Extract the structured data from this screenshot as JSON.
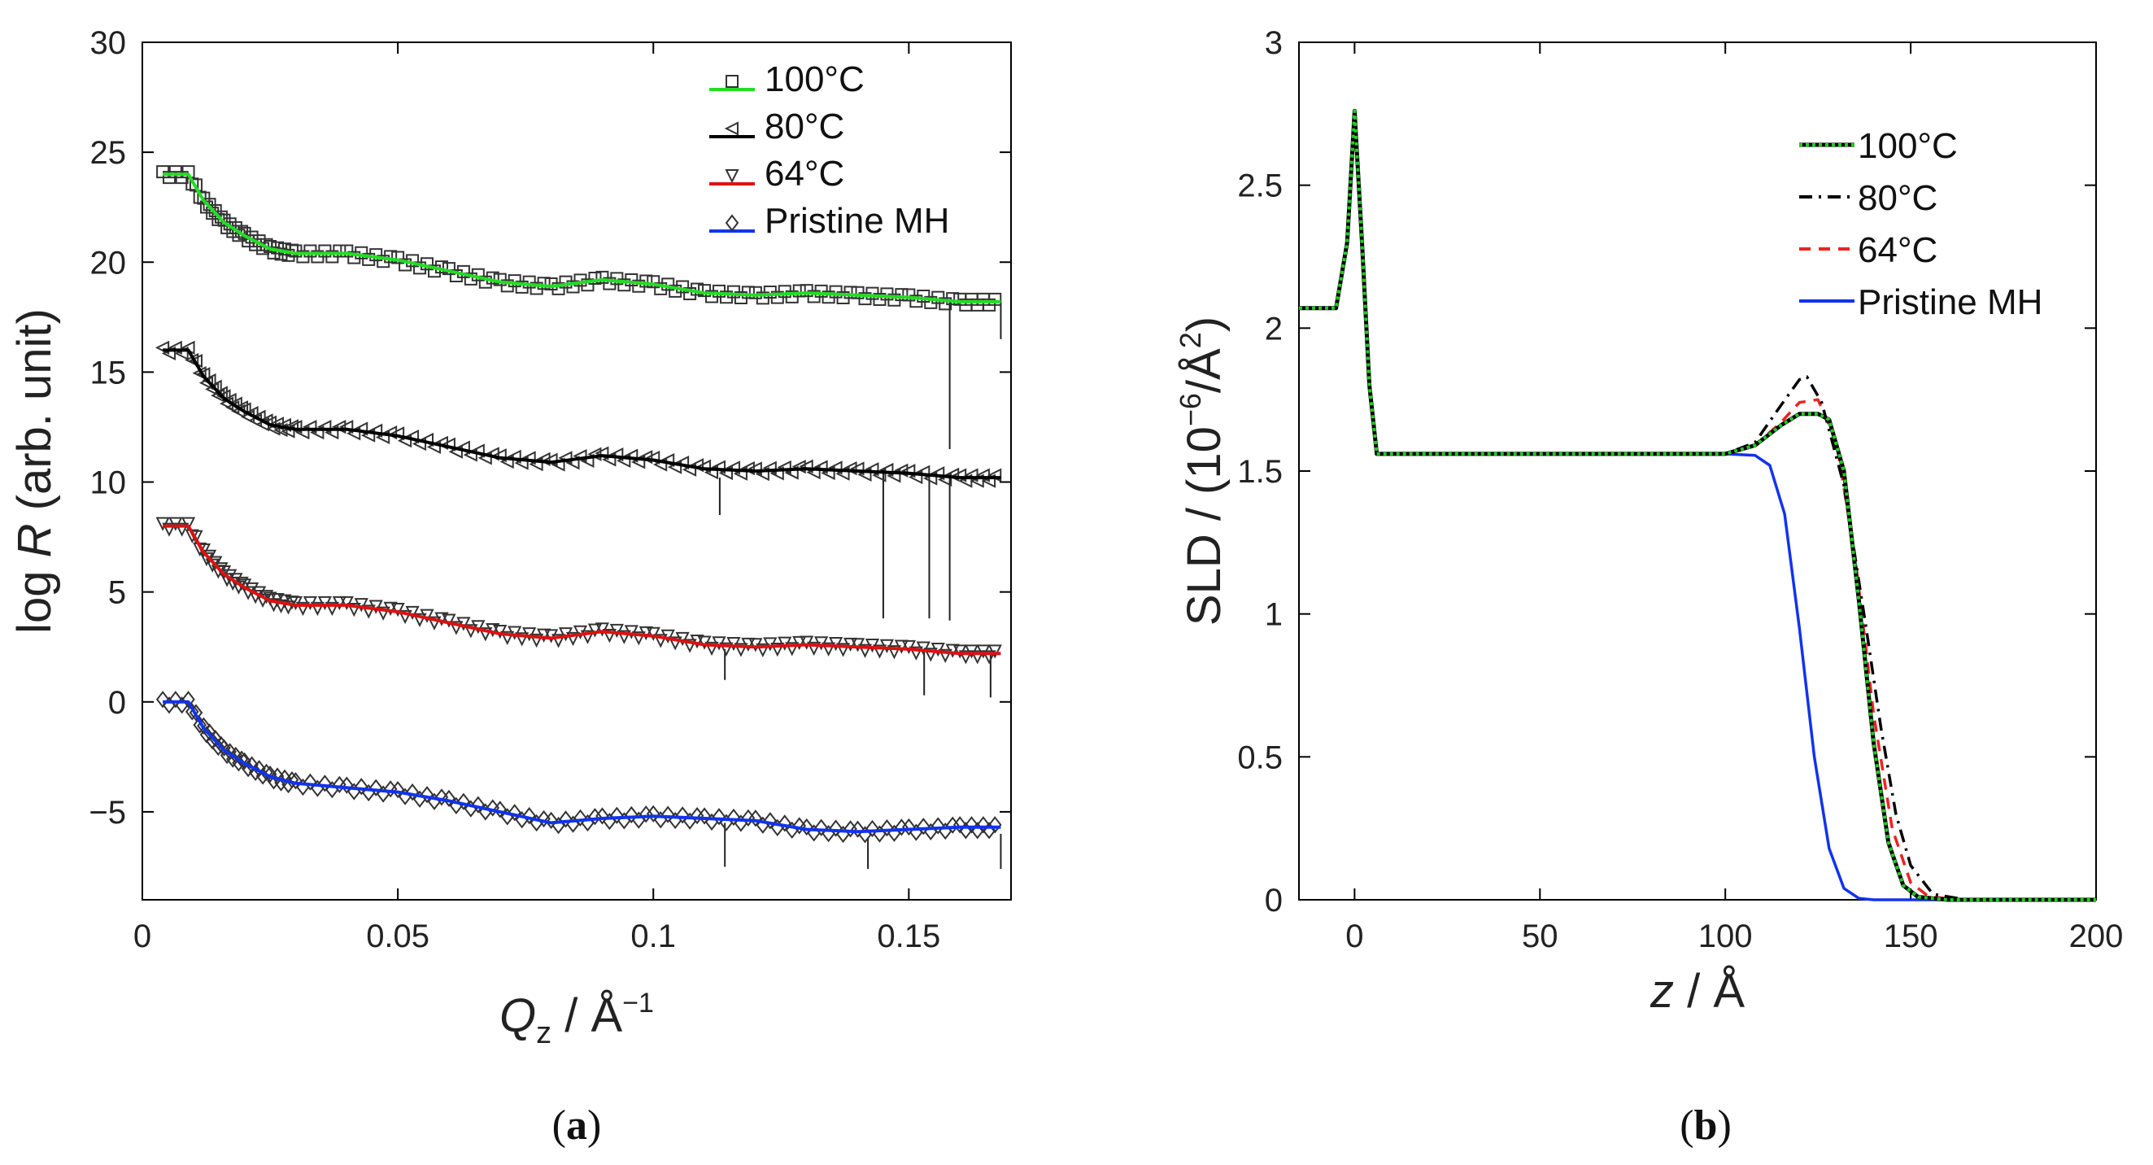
{
  "chart_data": [
    {
      "panel": "a",
      "type": "line",
      "caption_letter": "a",
      "xlabel": "Q",
      "xlabel_sub": "z",
      "xlabel_unit": " / Å",
      "xlabel_exp": "−1",
      "ylabel": "log ",
      "ylabel_italic": "R",
      "ylabel_unit": " (arb. unit)",
      "xlim": [
        0,
        0.17
      ],
      "ylim": [
        -9,
        30
      ],
      "xticks": [
        0,
        0.05,
        0.1,
        0.15
      ],
      "xtick_labels": [
        "0",
        "0.05",
        "0.1",
        "0.15"
      ],
      "yticks": [
        -5,
        0,
        5,
        10,
        15,
        20,
        25,
        30
      ],
      "ytick_labels": [
        "−5",
        "0",
        "5",
        "10",
        "15",
        "20",
        "25",
        "30"
      ],
      "series": [
        {
          "name": "100°C",
          "color": "#22dd22",
          "marker": "square",
          "offset": 24,
          "x": [
            0.004,
            0.009,
            0.012,
            0.016,
            0.02,
            0.025,
            0.03,
            0.04,
            0.05,
            0.06,
            0.07,
            0.08,
            0.09,
            0.1,
            0.11,
            0.12,
            0.13,
            0.14,
            0.15,
            0.16,
            0.168
          ],
          "y": [
            24.0,
            24.0,
            22.8,
            21.8,
            21.2,
            20.6,
            20.4,
            20.4,
            20.1,
            19.6,
            19.1,
            18.9,
            19.2,
            19.0,
            18.6,
            18.5,
            18.6,
            18.5,
            18.4,
            18.2,
            18.2
          ]
        },
        {
          "name": "80°C",
          "color": "#000000",
          "marker": "triangle-left",
          "offset": 16,
          "x": [
            0.004,
            0.009,
            0.012,
            0.016,
            0.02,
            0.025,
            0.03,
            0.04,
            0.05,
            0.06,
            0.07,
            0.08,
            0.09,
            0.1,
            0.11,
            0.12,
            0.13,
            0.14,
            0.15,
            0.16,
            0.168
          ],
          "y": [
            16.0,
            16.0,
            14.8,
            13.8,
            13.2,
            12.6,
            12.4,
            12.4,
            12.1,
            11.6,
            11.1,
            10.9,
            11.2,
            11.0,
            10.6,
            10.5,
            10.6,
            10.5,
            10.4,
            10.2,
            10.2
          ]
        },
        {
          "name": "64°C",
          "color": "#dd1111",
          "marker": "triangle-down",
          "offset": 8,
          "x": [
            0.004,
            0.009,
            0.012,
            0.016,
            0.02,
            0.025,
            0.03,
            0.04,
            0.05,
            0.06,
            0.07,
            0.08,
            0.09,
            0.1,
            0.11,
            0.12,
            0.13,
            0.14,
            0.15,
            0.16,
            0.168
          ],
          "y": [
            8.0,
            8.0,
            6.8,
            5.8,
            5.2,
            4.6,
            4.4,
            4.4,
            4.1,
            3.6,
            3.1,
            2.9,
            3.2,
            3.0,
            2.6,
            2.5,
            2.6,
            2.5,
            2.4,
            2.2,
            2.2
          ]
        },
        {
          "name": "Pristine MH",
          "color": "#1133ee",
          "marker": "diamond",
          "offset": 0,
          "x": [
            0.004,
            0.009,
            0.012,
            0.016,
            0.02,
            0.025,
            0.03,
            0.04,
            0.05,
            0.06,
            0.07,
            0.08,
            0.09,
            0.1,
            0.11,
            0.12,
            0.13,
            0.14,
            0.15,
            0.16,
            0.168
          ],
          "y": [
            0.0,
            0.0,
            -1.2,
            -2.2,
            -2.8,
            -3.4,
            -3.7,
            -3.9,
            -4.1,
            -4.5,
            -5.0,
            -5.5,
            -5.3,
            -5.2,
            -5.3,
            -5.4,
            -5.8,
            -5.9,
            -5.8,
            -5.7,
            -5.7
          ]
        }
      ],
      "error_bars": [
        {
          "x": 0.158,
          "y": 18.2,
          "low": 11.5
        },
        {
          "x": 0.168,
          "y": 18.2,
          "low": 16.5
        },
        {
          "x": 0.145,
          "y": 10.4,
          "low": 3.8
        },
        {
          "x": 0.154,
          "y": 10.4,
          "low": 3.8
        },
        {
          "x": 0.158,
          "y": 10.4,
          "low": 3.7
        },
        {
          "x": 0.113,
          "y": 10.2,
          "low": 8.5
        },
        {
          "x": 0.114,
          "y": 2.4,
          "low": 1.0
        },
        {
          "x": 0.153,
          "y": 2.3,
          "low": 0.3
        },
        {
          "x": 0.166,
          "y": 2.2,
          "low": 0.2
        },
        {
          "x": 0.114,
          "y": -5.5,
          "low": -7.5
        },
        {
          "x": 0.142,
          "y": -6.2,
          "low": -7.6
        },
        {
          "x": 0.168,
          "y": -6.0,
          "low": -7.6
        }
      ]
    },
    {
      "panel": "b",
      "type": "line",
      "caption_letter": "b",
      "xlabel": "z",
      "xlabel_unit": " / Å",
      "ylabel": "SLD / (10",
      "ylabel_exp": "−6",
      "ylabel_unit2": "/Å",
      "ylabel_exp2": "2",
      "ylabel_close": ")",
      "xlim": [
        -15,
        200
      ],
      "ylim": [
        0,
        3
      ],
      "xticks": [
        0,
        50,
        100,
        150,
        200
      ],
      "xtick_labels": [
        "0",
        "50",
        "100",
        "150",
        "200"
      ],
      "yticks": [
        0,
        0.5,
        1,
        1.5,
        2,
        2.5,
        3
      ],
      "ytick_labels": [
        "0",
        "0.5",
        "1",
        "1.5",
        "2",
        "2.5",
        "3"
      ],
      "series": [
        {
          "name": "100°C",
          "color": "#118811",
          "style": "dotted",
          "x": [
            -15,
            -5,
            -2,
            0,
            2,
            4,
            6,
            8,
            100,
            108,
            115,
            120,
            125,
            128,
            132,
            136,
            140,
            144,
            148,
            152,
            160,
            200
          ],
          "y": [
            2.07,
            2.07,
            2.3,
            2.76,
            2.3,
            1.8,
            1.56,
            1.56,
            1.56,
            1.59,
            1.66,
            1.7,
            1.7,
            1.68,
            1.5,
            1.05,
            0.55,
            0.2,
            0.05,
            0.01,
            0,
            0
          ]
        },
        {
          "name": "80°C",
          "color": "#000000",
          "style": "dashdot",
          "x": [
            -15,
            -5,
            -2,
            0,
            2,
            4,
            6,
            8,
            100,
            108,
            115,
            120,
            122,
            126,
            132,
            138,
            142,
            146,
            150,
            156,
            165,
            200
          ],
          "y": [
            2.07,
            2.07,
            2.3,
            2.76,
            2.3,
            1.8,
            1.56,
            1.56,
            1.56,
            1.6,
            1.73,
            1.82,
            1.83,
            1.74,
            1.45,
            0.95,
            0.6,
            0.3,
            0.12,
            0.02,
            0,
            0
          ]
        },
        {
          "name": "64°C",
          "color": "#ee2222",
          "style": "dashed",
          "x": [
            -15,
            -5,
            -2,
            0,
            2,
            4,
            6,
            8,
            100,
            108,
            115,
            120,
            125,
            130,
            135,
            140,
            145,
            150,
            155,
            165,
            200
          ],
          "y": [
            2.07,
            2.07,
            2.3,
            2.76,
            2.3,
            1.8,
            1.56,
            1.56,
            1.56,
            1.59,
            1.67,
            1.74,
            1.75,
            1.6,
            1.2,
            0.65,
            0.25,
            0.06,
            0.01,
            0,
            0
          ]
        },
        {
          "name": "Pristine MH",
          "color": "#1133ee",
          "style": "solid",
          "x": [
            -15,
            -5,
            -2,
            0,
            2,
            4,
            6,
            8,
            100,
            108,
            112,
            116,
            120,
            124,
            128,
            132,
            136,
            140,
            200
          ],
          "y": [
            2.07,
            2.07,
            2.3,
            2.76,
            2.3,
            1.8,
            1.56,
            1.56,
            1.56,
            1.555,
            1.52,
            1.35,
            0.95,
            0.5,
            0.18,
            0.04,
            0.005,
            0,
            0
          ]
        }
      ]
    }
  ]
}
